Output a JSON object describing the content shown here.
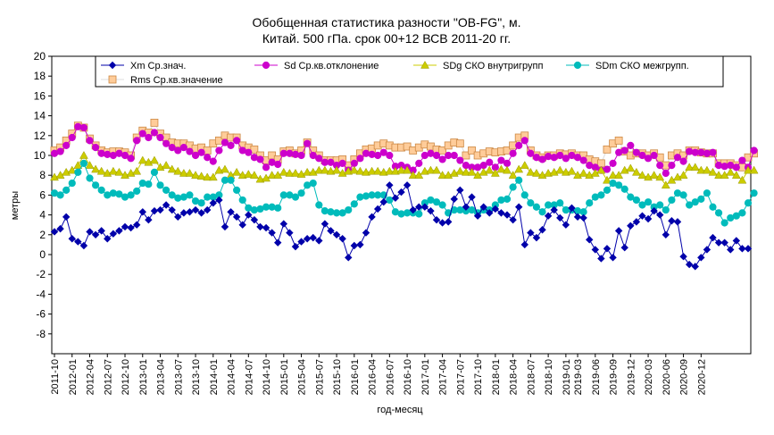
{
  "chart_data": {
    "type": "line",
    "title_line1": "Обобщенная статистика разности \"OB-FG\", м.",
    "title_line2": "Китай. 500 гПа. срок 00+12 ВСВ 2011-20 гг.",
    "xlabel": "год-месяц",
    "ylabel": "метры",
    "ylim": [
      -10,
      20
    ],
    "yticks": [
      -8,
      -6,
      -4,
      -2,
      0,
      2,
      4,
      6,
      8,
      10,
      12,
      14,
      16,
      18,
      20
    ],
    "grid": false,
    "legend_placement": "top",
    "x_start": "2011-10",
    "x_tick_labels": [
      "2011-10",
      "2012-01",
      "2012-04",
      "2012-07",
      "2012-10",
      "2013-01",
      "2013-04",
      "2013-07",
      "2013-10",
      "2014-01",
      "2014-04",
      "2014-07",
      "2014-10",
      "2015-01",
      "2015-04",
      "2015-07",
      "2015-10",
      "2016-01",
      "2016-04",
      "2016-07",
      "2016-10",
      "2017-01",
      "2017-04",
      "2017-07",
      "2017-10",
      "2018-01",
      "2018-04",
      "2018-07",
      "2018-10",
      "2019-01",
      "2019-03",
      "2019-06",
      "2019-09",
      "2019-12",
      "2020-03",
      "2020-06",
      "2020-09",
      "2020-12"
    ],
    "series": [
      {
        "name": "Xm Ср.знач.",
        "color": "#0000aa",
        "marker": "diamond",
        "values": [
          2.3,
          2.6,
          3.8,
          1.6,
          1.3,
          0.9,
          2.3,
          2.0,
          2.4,
          1.6,
          2.1,
          2.4,
          2.8,
          2.7,
          3.0,
          4.3,
          3.5,
          4.4,
          4.5,
          5.0,
          4.5,
          3.8,
          4.2,
          4.3,
          4.5,
          4.2,
          4.5,
          5.2,
          5.5,
          2.8,
          4.3,
          3.8,
          3.0,
          4.0,
          3.5,
          2.8,
          2.7,
          2.2,
          1.2,
          3.1,
          2.2,
          0.8,
          1.3,
          1.6,
          1.7,
          1.4,
          3.1,
          2.4,
          2.0,
          1.6,
          -0.3,
          0.9,
          1.0,
          2.2,
          3.8,
          4.6,
          5.3,
          7.0,
          5.7,
          6.3,
          7.0,
          4.5,
          4.8,
          4.8,
          4.4,
          3.5,
          3.2,
          3.3,
          5.6,
          6.5,
          4.8,
          5.8,
          3.9,
          4.8,
          4.2,
          4.6,
          4.2,
          4.0,
          3.5,
          4.8,
          1.0,
          2.2,
          1.7,
          2.5,
          3.9,
          4.5,
          3.7,
          3.0,
          4.7,
          3.8,
          3.7,
          1.5,
          0.5,
          -0.4,
          0.6,
          -0.3,
          2.4,
          0.7,
          2.9,
          3.3,
          3.9,
          3.6,
          4.4,
          4.0,
          2.0,
          3.4,
          3.3,
          -0.2,
          -1.0,
          -1.2,
          -0.3,
          0.5,
          1.7,
          1.2,
          1.2,
          0.5,
          1.4,
          0.6,
          0.6
        ],
        "values_note": ""
      },
      {
        "name": "Sd Ср.кв.отклонение",
        "color": "#cc00cc",
        "marker": "circle",
        "values": [
          10.2,
          10.4,
          11.0,
          11.8,
          12.9,
          12.8,
          11.5,
          10.8,
          10.2,
          10.1,
          10.0,
          10.2,
          10.0,
          9.7,
          11.5,
          12.2,
          11.8,
          12.3,
          11.8,
          11.2,
          10.8,
          10.5,
          10.8,
          10.4,
          10.0,
          10.3,
          9.8,
          9.4,
          10.5,
          11.3,
          11.0,
          11.5,
          10.5,
          10.3,
          9.8,
          9.6,
          8.8,
          9.3,
          9.1,
          10.2,
          10.2,
          10.1,
          10.0,
          11.2,
          10.0,
          9.7,
          9.3,
          9.3,
          9.0,
          9.2,
          8.5,
          9.2,
          9.7,
          10.2,
          10.1,
          10.0,
          10.3,
          10.0,
          8.9,
          9.0,
          8.8,
          8.5,
          9.2,
          10.0,
          10.2,
          10.0,
          9.6,
          10.0,
          10.0,
          9.5,
          9.0,
          8.8,
          8.8,
          9.0,
          9.3,
          8.8,
          9.5,
          9.2,
          10.2,
          11.0,
          11.5,
          10.2,
          9.8,
          9.6,
          9.9,
          9.8,
          10.0,
          9.7,
          10.0,
          9.8,
          9.5,
          9.0,
          8.8,
          8.5,
          8.6,
          9.2,
          10.3,
          10.5,
          11.0,
          10.3,
          10.0,
          9.7,
          10.0,
          9.0,
          8.2,
          9.0,
          9.8,
          9.4,
          10.4,
          10.3,
          10.3,
          10.2,
          10.3,
          9.0,
          8.9,
          9.0,
          8.8,
          9.5,
          8.8,
          10.5
        ]
      },
      {
        "name": "SDg СКО внутригрупп",
        "color": "#cccc00",
        "marker": "triangle",
        "values": [
          7.8,
          8.0,
          8.3,
          8.5,
          9.0,
          10.0,
          9.0,
          8.6,
          8.4,
          8.2,
          8.4,
          8.3,
          8.0,
          8.2,
          8.4,
          9.5,
          9.3,
          9.5,
          8.8,
          9.0,
          8.6,
          8.4,
          8.2,
          8.2,
          8.0,
          7.9,
          7.8,
          7.8,
          8.5,
          8.6,
          8.0,
          8.3,
          8.0,
          8.1,
          8.0,
          7.6,
          7.7,
          8.0,
          8.0,
          8.3,
          8.2,
          8.2,
          8.1,
          8.3,
          8.3,
          8.5,
          8.5,
          8.4,
          8.5,
          8.2,
          8.4,
          8.5,
          8.4,
          8.3,
          8.4,
          8.4,
          8.3,
          8.4,
          8.4,
          8.5,
          8.5,
          8.0,
          8.0,
          8.4,
          8.5,
          8.5,
          8.0,
          8.0,
          8.2,
          8.4,
          8.3,
          8.3,
          8.0,
          8.3,
          8.5,
          8.2,
          8.6,
          8.5,
          8.0,
          8.6,
          9.0,
          8.3,
          8.2,
          8.0,
          8.2,
          8.3,
          8.5,
          8.3,
          8.4,
          8.0,
          8.2,
          8.0,
          8.2,
          8.5,
          7.5,
          8.0,
          8.0,
          8.5,
          8.7,
          8.3,
          8.0,
          7.8,
          8.0,
          7.8,
          7.0,
          7.5,
          7.8,
          8.0,
          8.8,
          8.8,
          8.5,
          8.5,
          8.3,
          8.0,
          8.0,
          8.3,
          8.0,
          7.5,
          8.5,
          8.5
        ]
      },
      {
        "name": "SDm СКО межгрупп.",
        "color": "#00bbbb",
        "marker": "circle",
        "values": [
          6.2,
          6.0,
          6.5,
          7.2,
          8.3,
          9.2,
          7.7,
          7.0,
          6.5,
          6.0,
          6.2,
          6.1,
          5.8,
          6.0,
          6.4,
          7.2,
          7.1,
          8.3,
          7.0,
          6.5,
          6.0,
          5.7,
          5.8,
          6.0,
          5.4,
          5.2,
          5.8,
          5.8,
          6.0,
          7.5,
          7.5,
          6.5,
          5.5,
          4.7,
          4.5,
          4.6,
          4.8,
          4.8,
          4.7,
          6.0,
          6.0,
          5.8,
          6.2,
          7.0,
          7.2,
          5.0,
          4.4,
          4.3,
          4.2,
          4.2,
          4.5,
          5.1,
          5.8,
          5.9,
          6.0,
          6.0,
          6.0,
          5.5,
          4.3,
          4.1,
          4.2,
          4.2,
          4.1,
          5.2,
          5.5,
          5.3,
          5.0,
          4.2,
          4.5,
          4.5,
          4.4,
          4.5,
          4.2,
          4.5,
          4.5,
          5.0,
          5.5,
          5.6,
          6.8,
          7.5,
          6.0,
          5.2,
          4.8,
          4.3,
          5.0,
          5.0,
          5.2,
          4.5,
          4.5,
          4.4,
          4.3,
          5.2,
          5.8,
          6.0,
          6.5,
          7.2,
          7.0,
          6.6,
          5.8,
          5.5,
          5.0,
          5.3,
          4.8,
          5.0,
          4.5,
          5.5,
          6.2,
          6.0,
          5.0,
          5.3,
          5.6,
          6.2,
          4.8,
          4.2,
          3.2,
          3.7,
          3.9,
          4.2,
          5.2,
          6.2
        ]
      },
      {
        "name": "Rms Ср.кв.значение",
        "color": "#ffcc99",
        "marker": "square",
        "values": [
          10.5,
          10.8,
          11.5,
          12.2,
          13.0,
          12.8,
          11.7,
          11.0,
          10.5,
          10.3,
          10.4,
          10.4,
          10.3,
          10.0,
          11.8,
          12.5,
          12.3,
          13.3,
          12.2,
          11.8,
          11.3,
          11.2,
          11.2,
          11.0,
          10.7,
          10.8,
          10.5,
          11.2,
          11.5,
          12.0,
          11.8,
          11.8,
          11.0,
          10.8,
          10.6,
          10.0,
          9.5,
          10.0,
          9.6,
          10.4,
          10.5,
          10.2,
          10.5,
          11.3,
          10.5,
          10.0,
          9.5,
          9.5,
          9.5,
          9.6,
          9.0,
          9.6,
          10.2,
          10.6,
          10.7,
          11.0,
          11.2,
          11.0,
          10.8,
          10.8,
          10.9,
          10.5,
          10.8,
          11.1,
          10.9,
          10.6,
          10.5,
          11.0,
          11.3,
          11.2,
          10.0,
          10.5,
          10.0,
          10.2,
          10.4,
          10.3,
          10.4,
          10.5,
          11.0,
          11.8,
          12.0,
          10.5,
          10.0,
          9.8,
          10.0,
          10.0,
          10.2,
          10.1,
          10.2,
          10.0,
          10.0,
          9.6,
          9.4,
          9.2,
          10.6,
          11.2,
          11.5,
          10.4,
          10.0,
          10.2,
          10.2,
          10.0,
          10.2,
          9.8,
          9.0,
          10.0,
          10.2,
          10.0,
          10.5,
          10.5,
          10.3,
          10.2,
          10.2,
          9.2,
          9.2,
          9.2,
          9.0,
          8.8,
          9.8,
          10.2
        ]
      }
    ]
  }
}
